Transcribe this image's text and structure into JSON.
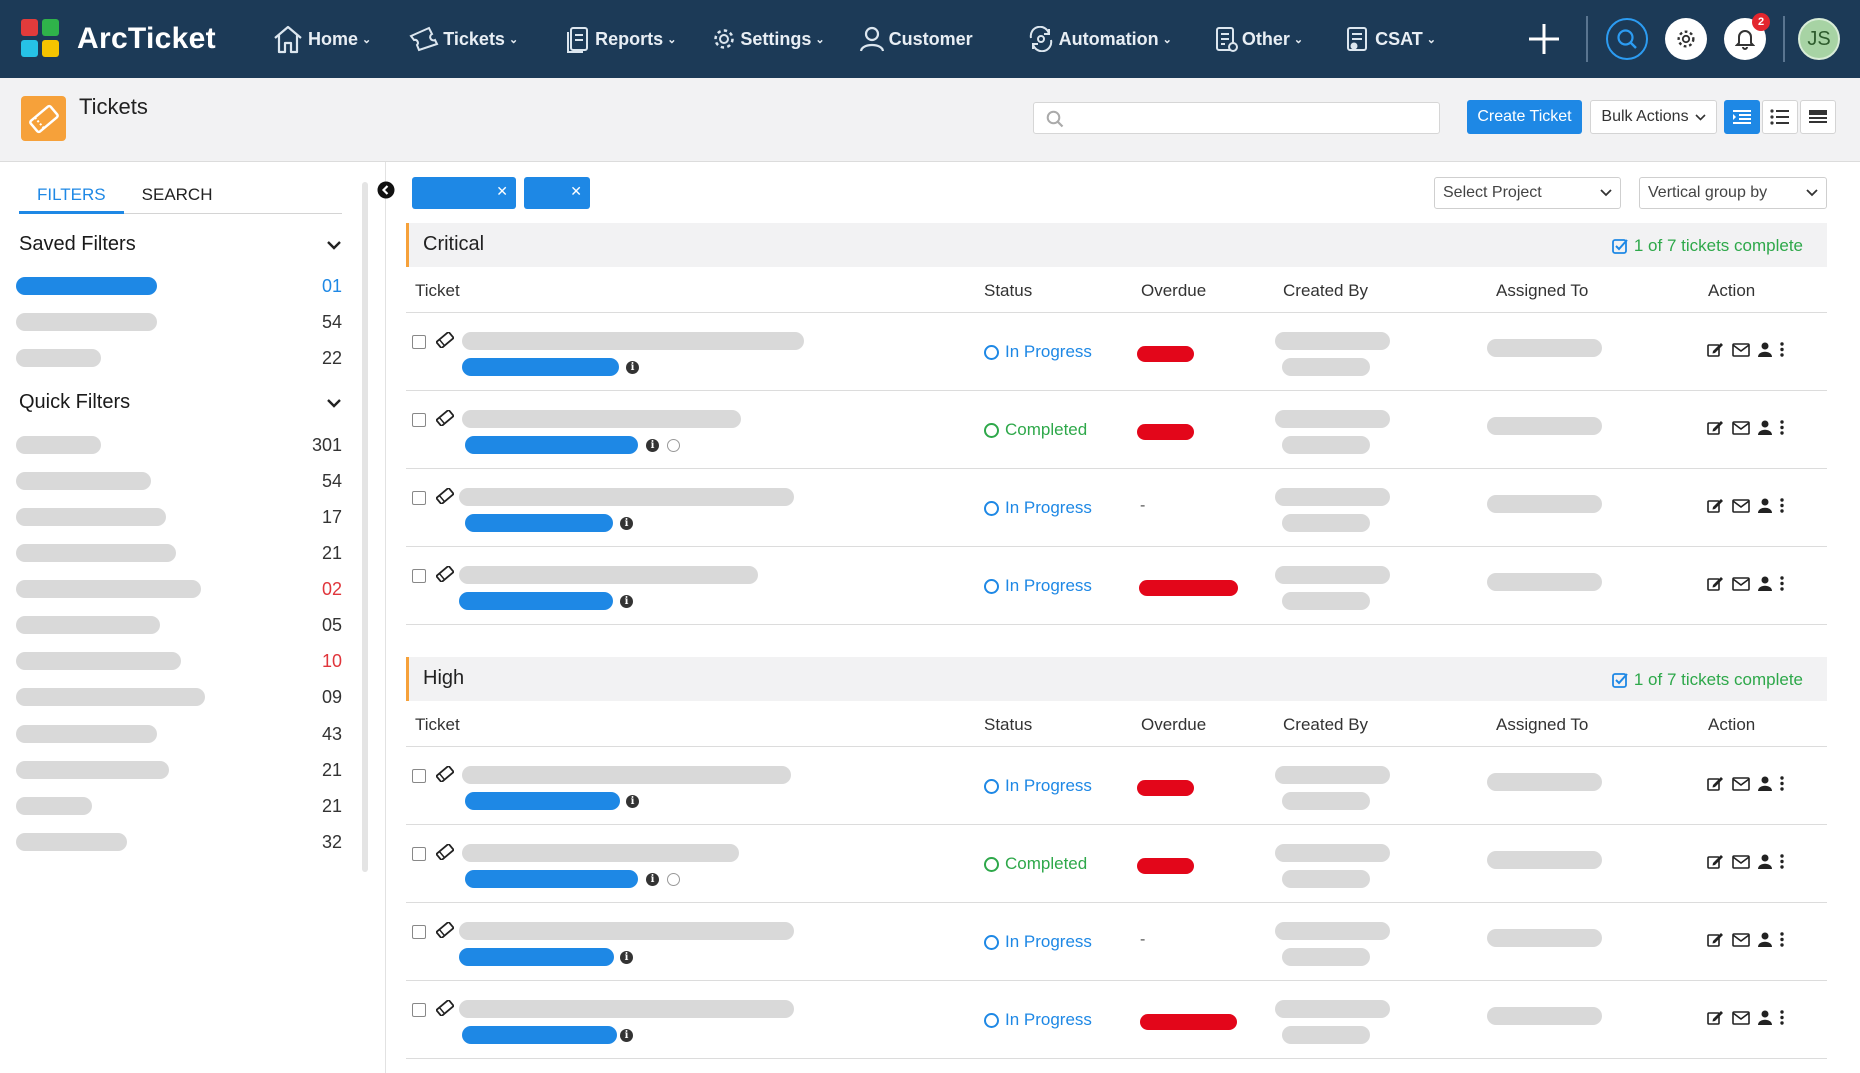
{
  "app": {
    "name": "ArcTicket",
    "colors": {
      "nav_bg": "#1c3a57",
      "accent": "#1e88e5",
      "brand_orange": "#f6a13a",
      "overdue_red": "#e3061a",
      "success_green": "#2ea84a",
      "danger_red": "#e0353b"
    }
  },
  "nav": {
    "items": [
      {
        "label": "Home",
        "icon": "home-icon",
        "has_dropdown": true
      },
      {
        "label": "Tickets",
        "icon": "ticket-icon",
        "has_dropdown": true
      },
      {
        "label": "Reports",
        "icon": "reports-icon",
        "has_dropdown": true
      },
      {
        "label": "Settings",
        "icon": "gear-icon",
        "has_dropdown": true
      },
      {
        "label": "Customer",
        "icon": "user-icon",
        "has_dropdown": false
      },
      {
        "label": "Automation",
        "icon": "automation-icon",
        "has_dropdown": true
      },
      {
        "label": "Other",
        "icon": "other-icon",
        "has_dropdown": true
      },
      {
        "label": "CSAT",
        "icon": "csat-icon",
        "has_dropdown": true
      }
    ],
    "notification_count": "2",
    "avatar_initials": "JS"
  },
  "header": {
    "title": "Tickets",
    "search_placeholder": "",
    "create_button": "Create Ticket",
    "bulk_actions": "Bulk Actions"
  },
  "sidebar": {
    "tabs": [
      "FILTERS",
      "SEARCH"
    ],
    "active_tab": "FILTERS",
    "saved_filters": {
      "title": "Saved Filters",
      "items": [
        {
          "count": "01",
          "highlight": "blue"
        },
        {
          "count": "54",
          "highlight": "none"
        },
        {
          "count": "22",
          "highlight": "none"
        }
      ]
    },
    "quick_filters": {
      "title": "Quick Filters",
      "items": [
        {
          "count": "301",
          "highlight": "none"
        },
        {
          "count": "54",
          "highlight": "none"
        },
        {
          "count": "17",
          "highlight": "none"
        },
        {
          "count": "21",
          "highlight": "none"
        },
        {
          "count": "02",
          "highlight": "red"
        },
        {
          "count": "05",
          "highlight": "none"
        },
        {
          "count": "10",
          "highlight": "red"
        },
        {
          "count": "09",
          "highlight": "none"
        },
        {
          "count": "43",
          "highlight": "none"
        },
        {
          "count": "21",
          "highlight": "none"
        },
        {
          "count": "21",
          "highlight": "none"
        },
        {
          "count": "32",
          "highlight": "none"
        }
      ]
    }
  },
  "toolbar": {
    "select_project": "Select Project",
    "vertical_group_by": "Vertical group by"
  },
  "table": {
    "columns": [
      "Ticket",
      "Status",
      "Overdue",
      "Created By",
      "Assigned To",
      "Action"
    ],
    "groups": [
      {
        "title": "Critical",
        "progress": "1 of 7 tickets complete",
        "rows": [
          {
            "status": "In Progress",
            "state": "progress",
            "overdue": "yes",
            "extra_icon": "none"
          },
          {
            "status": "Completed",
            "state": "done",
            "overdue": "yes",
            "extra_icon": "smile"
          },
          {
            "status": "In Progress",
            "state": "progress",
            "overdue": "-",
            "extra_icon": "none"
          },
          {
            "status": "In Progress",
            "state": "progress",
            "overdue": "yes",
            "extra_icon": "none"
          }
        ]
      },
      {
        "title": "High",
        "progress": "1 of 7 tickets complete",
        "rows": [
          {
            "status": "In Progress",
            "state": "progress",
            "overdue": "yes",
            "extra_icon": "none"
          },
          {
            "status": "Completed",
            "state": "done",
            "overdue": "yes",
            "extra_icon": "smile"
          },
          {
            "status": "In Progress",
            "state": "progress",
            "overdue": "-",
            "extra_icon": "none"
          },
          {
            "status": "In Progress",
            "state": "progress",
            "overdue": "yes",
            "extra_icon": "none"
          }
        ]
      }
    ]
  }
}
